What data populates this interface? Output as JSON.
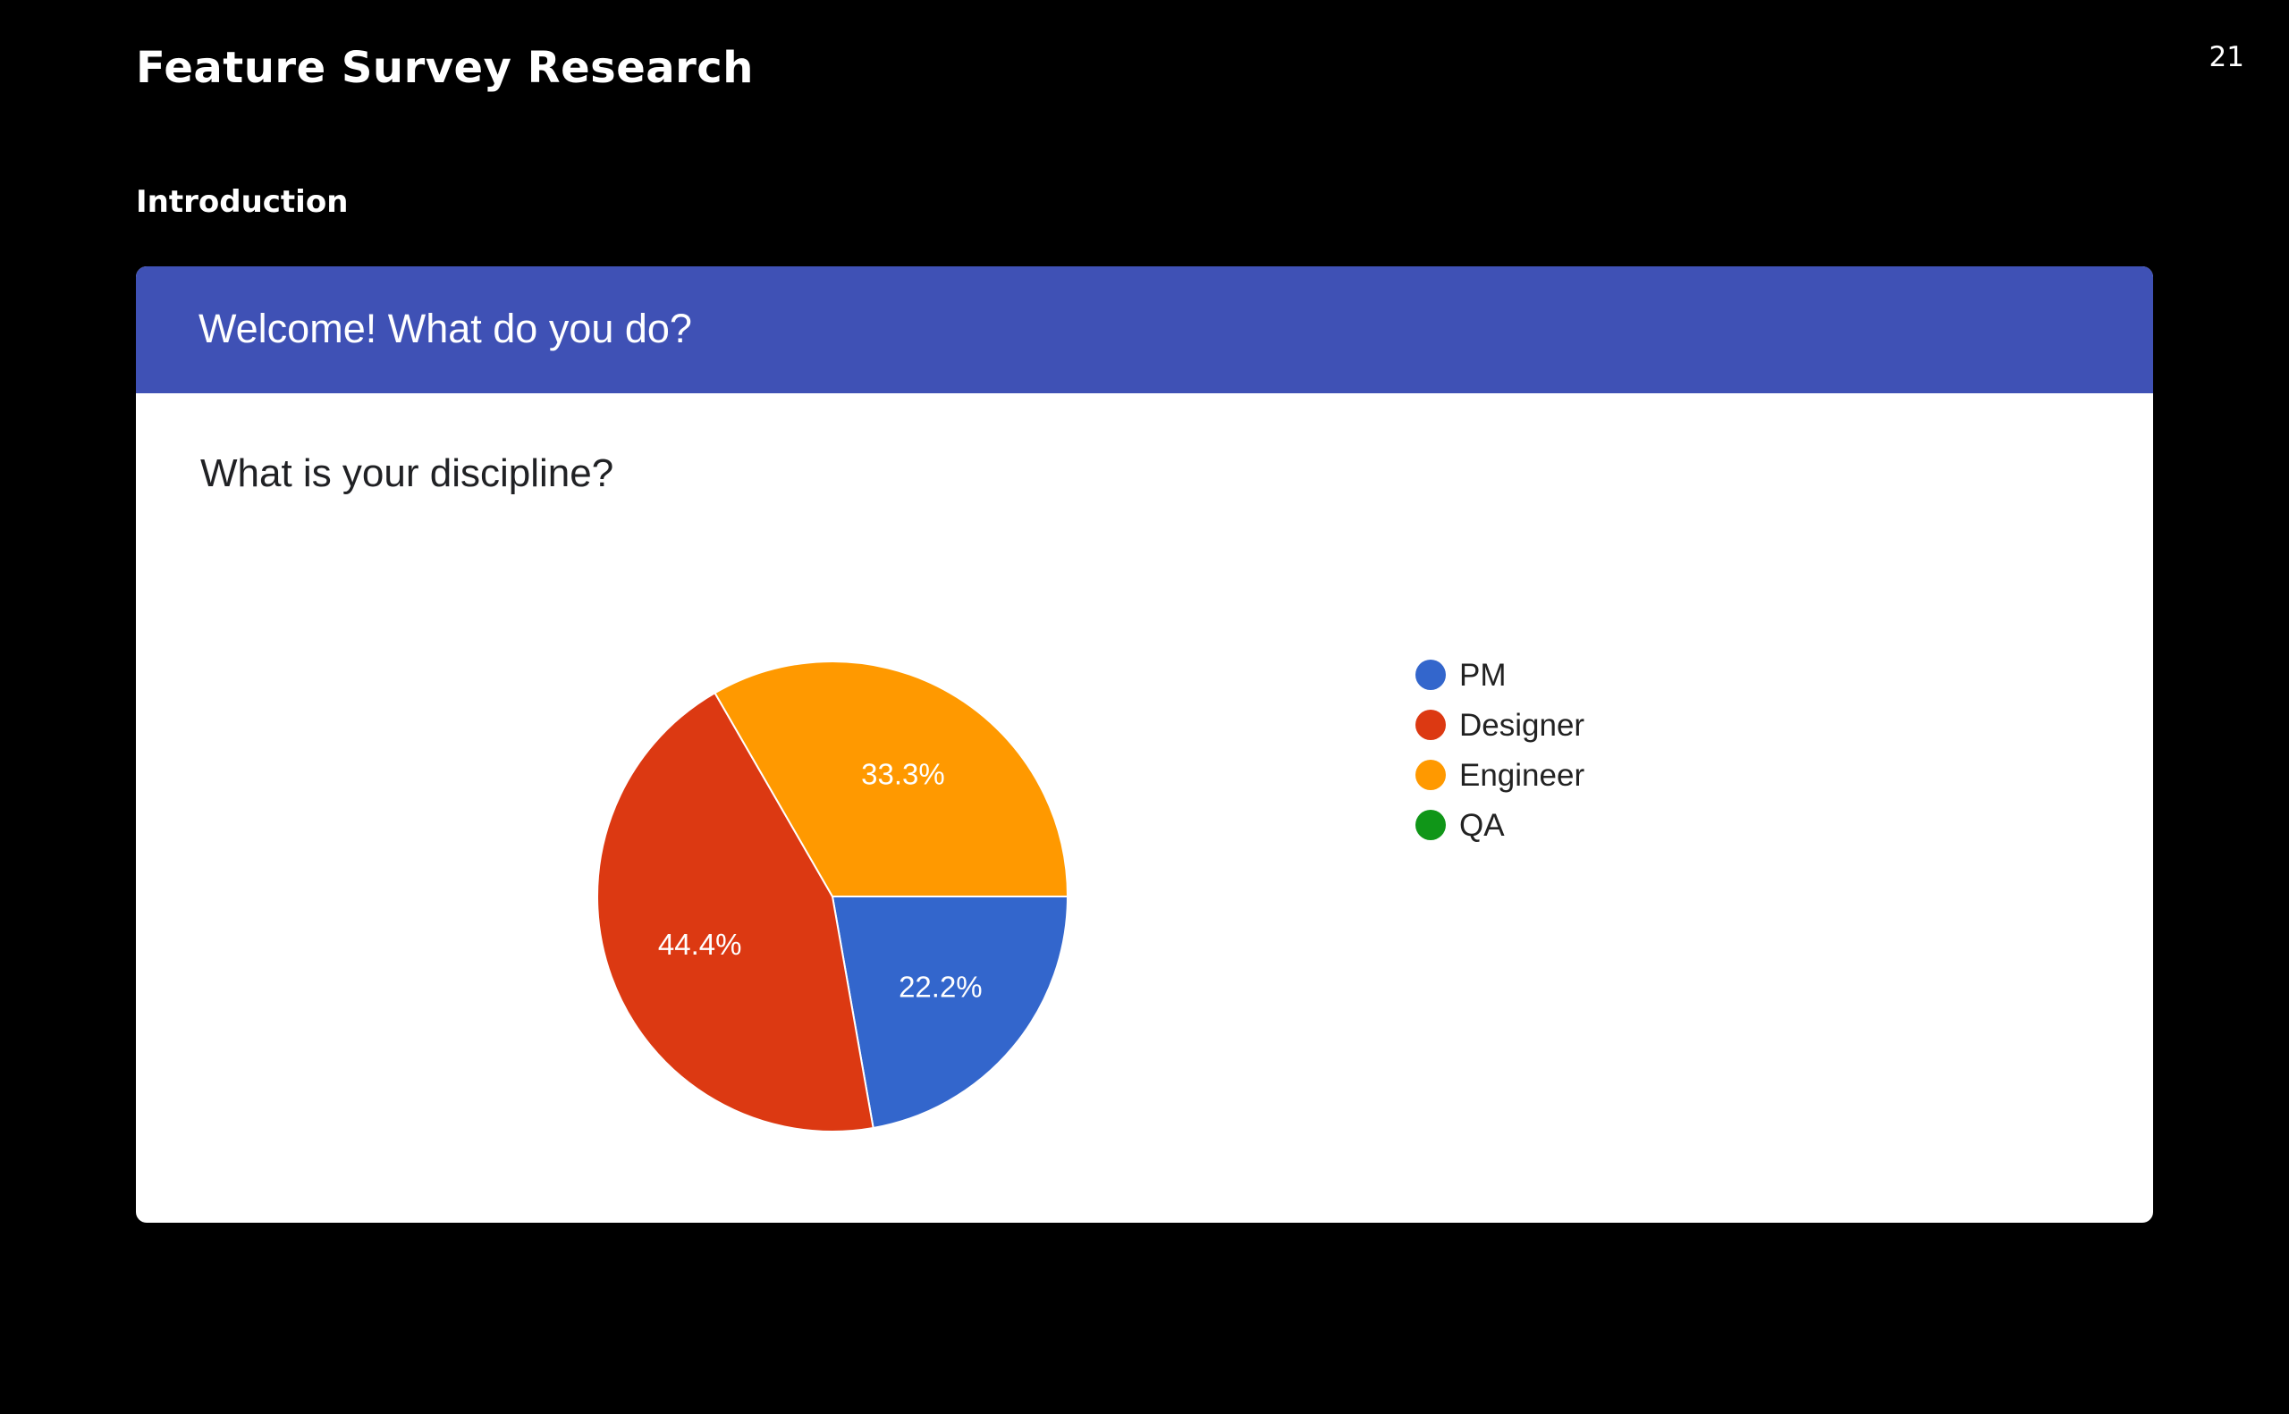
{
  "slide": {
    "title": "Feature Survey Research",
    "page_number": "21",
    "section": "Introduction"
  },
  "card": {
    "header": "Welcome! What do you do?",
    "question": "What is your discipline?",
    "header_color": "#3f51b5"
  },
  "chart_data": {
    "type": "pie",
    "title": "",
    "legend_position": "right",
    "start_direction": "clockwise from 3 o'clock",
    "slices": [
      {
        "label": "PM",
        "value": 22.2,
        "display": "22.2%",
        "color": "#3366cc"
      },
      {
        "label": "Designer",
        "value": 44.4,
        "display": "44.4%",
        "color": "#dc3912"
      },
      {
        "label": "Engineer",
        "value": 33.3,
        "display": "33.3%",
        "color": "#ff9900"
      },
      {
        "label": "QA",
        "value": 0,
        "display": "",
        "color": "#109618"
      }
    ]
  }
}
